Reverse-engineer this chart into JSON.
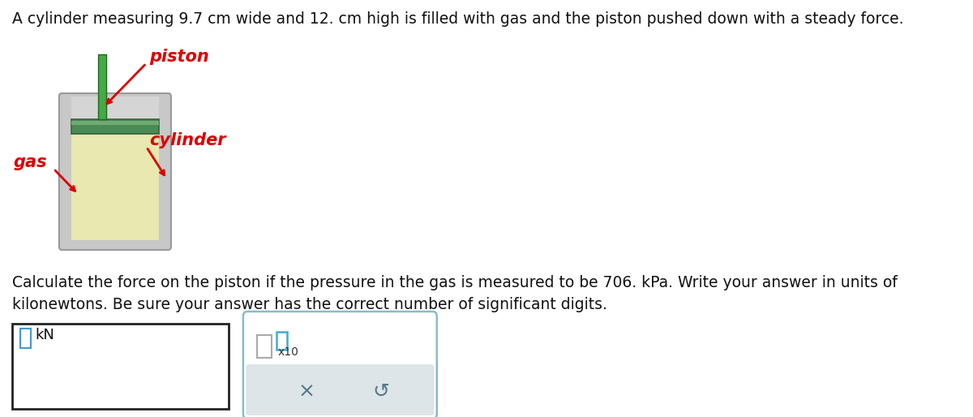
{
  "title_text": "A cylinder measuring 9.7 cm wide and 12. cm high is filled with gas and the piston pushed down with a steady force.",
  "question_line1": "Calculate the force on the piston if the pressure in the gas is measured to be 706. kPa. Write your answer in units of",
  "question_line2": "kilonewtons. Be sure your answer has the correct number of significant digits.",
  "label_piston": "piston",
  "label_cylinder": "cylinder",
  "label_gas": "gas",
  "label_kN": "kN",
  "label_x10": "x10",
  "bg_color": "#ffffff",
  "cyl_outer_color": "#c8c8c8",
  "cyl_outer_edge": "#999999",
  "cyl_inner_color": "#e8e8b0",
  "cyl_top_cap": "#d5d5d5",
  "piston_color": "#5a8a60",
  "piston_edge": "#3a6040",
  "piston_dark": "#4a7a50",
  "rod_color": "#44aa44",
  "rod_dark": "#226622",
  "label_red": "#dd0000",
  "label_blue_cursor": "#4499cc",
  "ans_box_edge": "#222222",
  "sci_box_edge": "#88bbcc",
  "sci_box_bg": "#ffffff",
  "btn_area_color": "#dde5e8",
  "btn_text_color": "#557788",
  "title_fs": 13.5,
  "question_fs": 13.5,
  "label_fs": 15
}
